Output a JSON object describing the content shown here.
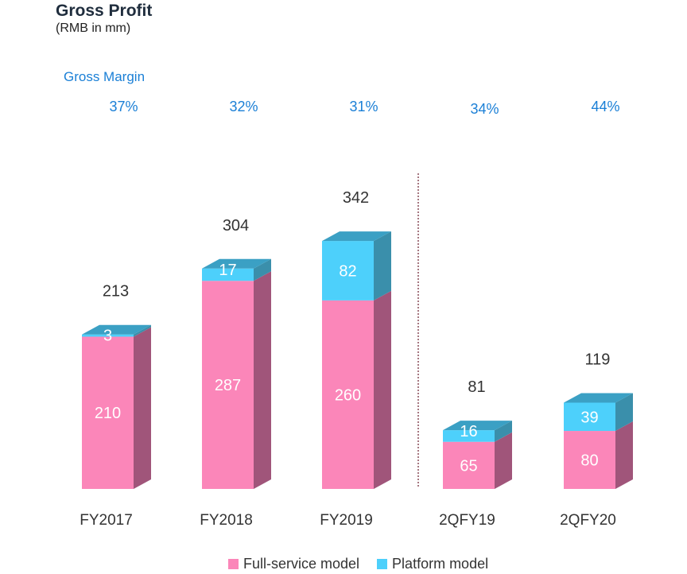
{
  "chart_data": {
    "type": "bar",
    "stacked": true,
    "title": "Gross Profit",
    "subtitle": "(RMB in mm)",
    "margin_label": "Gross Margin",
    "categories": [
      "FY2017",
      "FY2018",
      "FY2019",
      "2QFY19",
      "2QFY20"
    ],
    "series": [
      {
        "name": "Full-service model",
        "color": "#fb86b9",
        "values": [
          210,
          287,
          260,
          65,
          80
        ]
      },
      {
        "name": "Platform model",
        "color": "#4dd0fb",
        "values": [
          3,
          17,
          82,
          16,
          39
        ]
      }
    ],
    "totals": [
      "213",
      "304",
      "342",
      "81",
      "119"
    ],
    "value_labels": {
      "full_service": [
        "210",
        "287",
        "260",
        "65",
        "80"
      ],
      "platform": [
        "3",
        "17",
        "82",
        "16",
        "39"
      ]
    },
    "gross_margin": [
      "37%",
      "32%",
      "31%",
      "34%",
      "44%"
    ],
    "ylim": [
      0,
      360
    ],
    "grid": false,
    "legend": "bottom-center",
    "divider_after_category": "FY2019"
  }
}
